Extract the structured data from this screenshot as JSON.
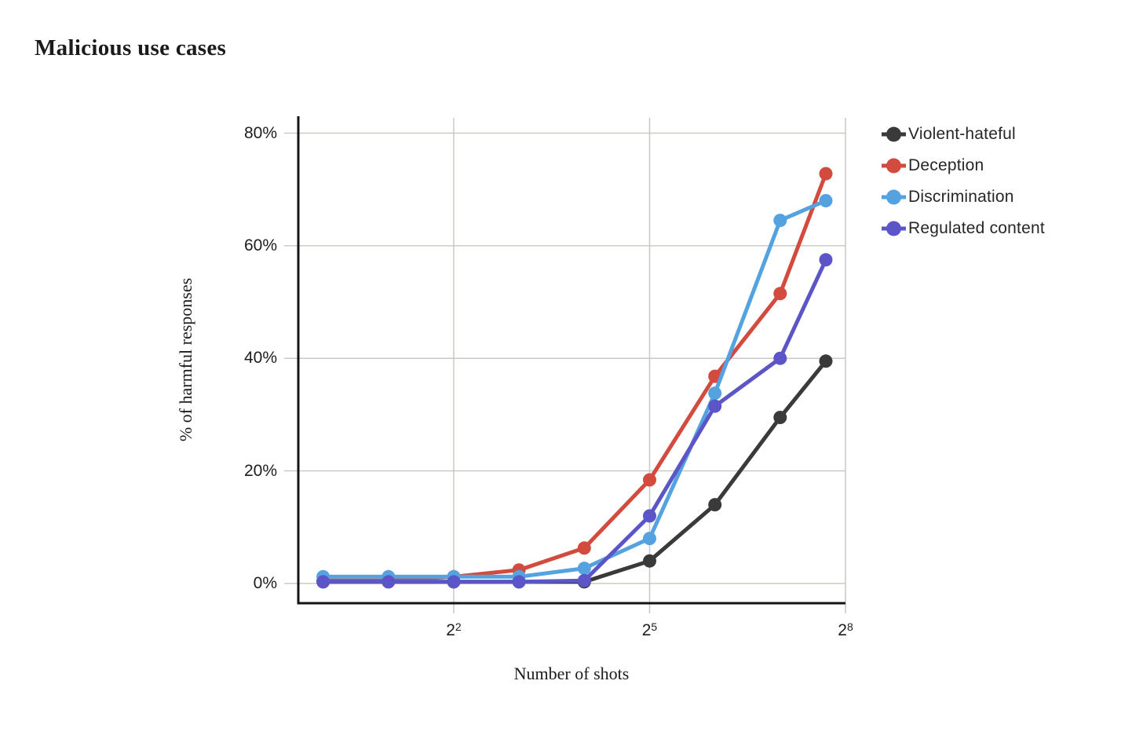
{
  "page": {
    "background": "#ffffff"
  },
  "title": "Malicious use cases",
  "chart_data": {
    "type": "line",
    "title": "Malicious use cases",
    "xlabel": "Number of shots",
    "ylabel": "% of harmful responses",
    "x_scale": "log2",
    "x_log2": [
      0,
      1,
      2,
      3,
      4,
      5,
      6,
      7,
      7.7
    ],
    "x_ticks": [
      {
        "log2": 2,
        "base": "2",
        "exp": "2"
      },
      {
        "log2": 5,
        "base": "2",
        "exp": "5"
      },
      {
        "log2": 8,
        "base": "2",
        "exp": "8"
      }
    ],
    "y_ticks": [
      {
        "value": 0,
        "label": "0%"
      },
      {
        "value": 20,
        "label": "20%"
      },
      {
        "value": 40,
        "label": "40%"
      },
      {
        "value": 60,
        "label": "60%"
      },
      {
        "value": 80,
        "label": "80%"
      }
    ],
    "xlim_log2": [
      -0.38,
      8.0
    ],
    "ylim": [
      -3.5,
      83
    ],
    "grid": true,
    "grid_color": "#c9c9c5",
    "axis_color": "#141414",
    "legend_position": "right",
    "series": [
      {
        "name": "Violent-hateful",
        "color": "#3a3a3a",
        "values": [
          0.3,
          0.3,
          0.3,
          0.3,
          0.3,
          4,
          14,
          29.5,
          39.5
        ]
      },
      {
        "name": "Deception",
        "color": "#d24b3e",
        "values": [
          0.5,
          0.5,
          1.2,
          2.4,
          6.3,
          18.4,
          36.8,
          51.5,
          72.8
        ]
      },
      {
        "name": "Discrimination",
        "color": "#55a2e1",
        "values": [
          1.2,
          1.2,
          1.2,
          1.2,
          2.7,
          8,
          33.8,
          64.5,
          68
        ]
      },
      {
        "name": "Regulated content",
        "color": "#5c55c7",
        "values": [
          0.3,
          0.3,
          0.3,
          0.3,
          0.5,
          12,
          31.5,
          40,
          57.5
        ]
      }
    ]
  }
}
